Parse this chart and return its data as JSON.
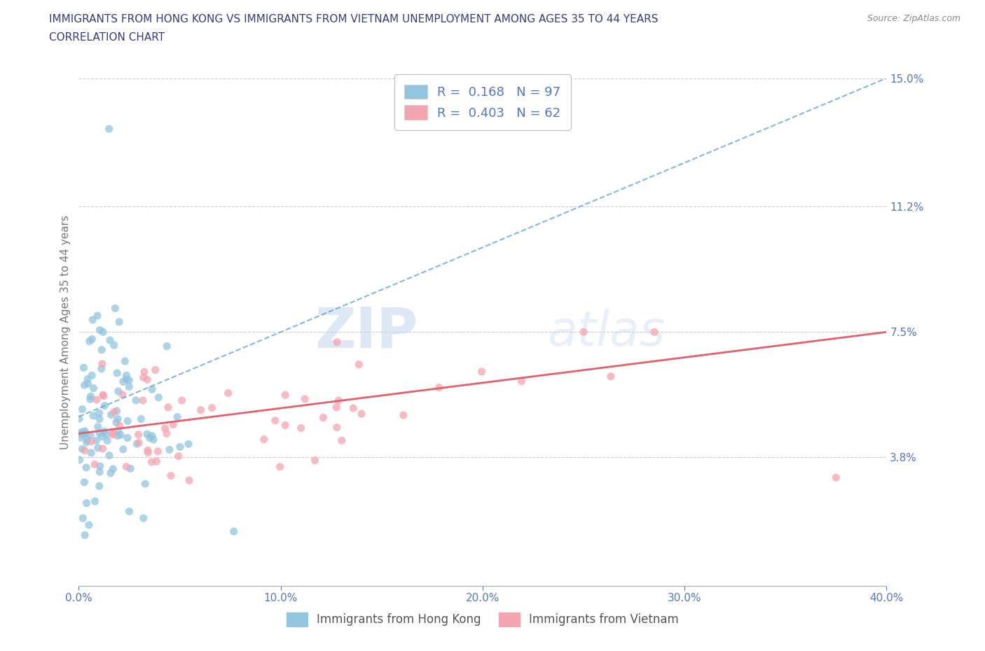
{
  "title_line1": "IMMIGRANTS FROM HONG KONG VS IMMIGRANTS FROM VIETNAM UNEMPLOYMENT AMONG AGES 35 TO 44 YEARS",
  "title_line2": "CORRELATION CHART",
  "source_text": "Source: ZipAtlas.com",
  "ylabel": "Unemployment Among Ages 35 to 44 years",
  "xlim": [
    0.0,
    40.0
  ],
  "ylim": [
    0.0,
    15.0
  ],
  "yticks": [
    3.8,
    7.5,
    11.2,
    15.0
  ],
  "ytick_labels": [
    "3.8%",
    "7.5%",
    "11.2%",
    "15.0%"
  ],
  "xticks": [
    0.0,
    10.0,
    20.0,
    30.0,
    40.0
  ],
  "xtick_labels": [
    "0.0%",
    "10.0%",
    "20.0%",
    "30.0%",
    "40.0%"
  ],
  "color_hk": "#92c5de",
  "color_vn": "#f4a5b0",
  "trendline_hk_color": "#5599cc",
  "trendline_vn_color": "#e06070",
  "R_hk": 0.168,
  "N_hk": 97,
  "R_vn": 0.403,
  "N_vn": 62,
  "legend_label_hk": "Immigrants from Hong Kong",
  "legend_label_vn": "Immigrants from Vietnam",
  "watermark_zip": "ZIP",
  "watermark_atlas": "atlas",
  "background_color": "#ffffff",
  "grid_color": "#cccccc",
  "title_color": "#3a3a7a",
  "tick_color": "#5577bb",
  "legend_text_color": "#5577bb",
  "bottom_legend_text_color": "#555555",
  "ylabel_color": "#777777",
  "source_color": "#888888"
}
